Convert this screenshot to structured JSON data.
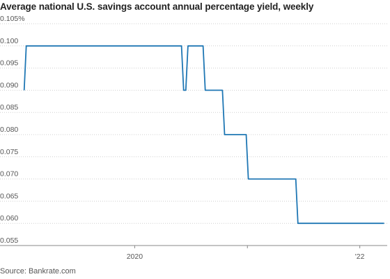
{
  "title": "Average national U.S. savings account annual percentage yield, weekly",
  "source": "Source: Bankrate.com",
  "colors": {
    "line": "#1f77b4",
    "grid": "#cfcfcf",
    "axis": "#888888",
    "text": "#555555"
  },
  "chart_data": {
    "type": "line",
    "title": "Average national U.S. savings account annual percentage yield, weekly",
    "xlabel": "",
    "ylabel": "",
    "y_ticks": [
      "0.105%",
      "0.100",
      "0.095",
      "0.090",
      "0.085",
      "0.080",
      "0.075",
      "0.070",
      "0.065",
      "0.060",
      "0.055"
    ],
    "x_ticks": [
      "2020",
      "",
      "'22"
    ],
    "ylim": [
      0.055,
      0.105
    ],
    "xlim": [
      "2019-01-01",
      "2022-03-31"
    ],
    "grid": true,
    "legend": "none",
    "step": true,
    "series": [
      {
        "points": [
          {
            "x": "2019-01-07",
            "y": 0.09
          },
          {
            "x": "2019-01-14",
            "y": 0.1
          },
          {
            "x": "2020-06-01",
            "y": 0.1
          },
          {
            "x": "2020-06-08",
            "y": 0.09
          },
          {
            "x": "2020-06-15",
            "y": 0.09
          },
          {
            "x": "2020-06-22",
            "y": 0.1
          },
          {
            "x": "2020-08-10",
            "y": 0.1
          },
          {
            "x": "2020-08-17",
            "y": 0.09
          },
          {
            "x": "2020-10-12",
            "y": 0.09
          },
          {
            "x": "2020-10-19",
            "y": 0.08
          },
          {
            "x": "2020-12-28",
            "y": 0.08
          },
          {
            "x": "2021-01-04",
            "y": 0.07
          },
          {
            "x": "2021-06-07",
            "y": 0.07
          },
          {
            "x": "2021-06-14",
            "y": 0.06
          },
          {
            "x": "2022-03-21",
            "y": 0.06
          }
        ]
      }
    ]
  }
}
